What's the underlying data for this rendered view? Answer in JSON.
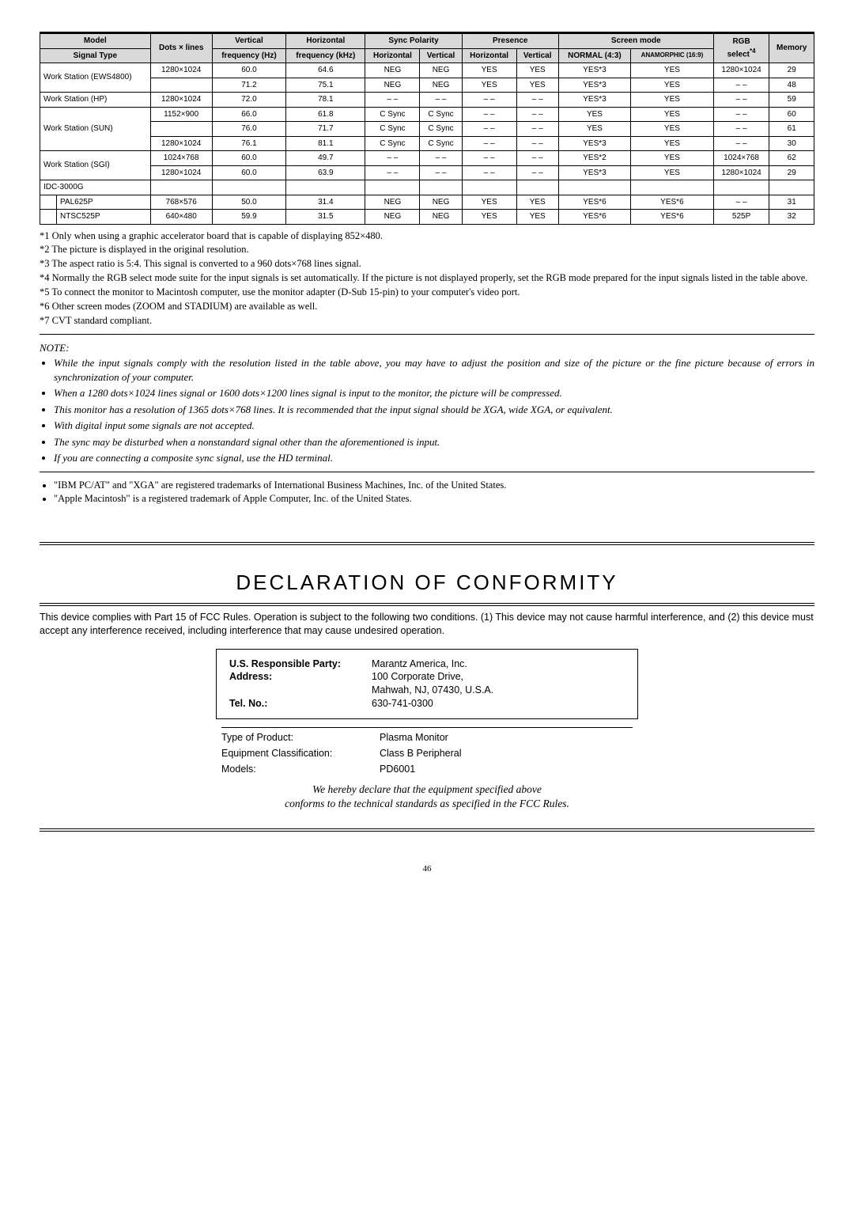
{
  "table": {
    "headers": {
      "model": "Model",
      "signal_type": "Signal Type",
      "dots_lines": "Dots × lines",
      "vert_freq": "Vertical",
      "vert_freq_unit": "frequency (Hz)",
      "horz_freq": "Horizontal",
      "horz_freq_unit": "frequency (kHz)",
      "sync_pol": "Sync Polarity",
      "presence": "Presence",
      "horizontal": "Horizontal",
      "vertical": "Vertical",
      "screen_mode": "Screen mode",
      "normal": "NORMAL (4:3)",
      "anam": "ANAMORPHIC (16:9)",
      "rgb_select": "RGB select*4",
      "memory": "Memory"
    },
    "groups": [
      {
        "model": "Work Station (EWS4800)",
        "rows": [
          {
            "dl": "1280×1024",
            "vf": "60.0",
            "hf": "64.6",
            "sh": "NEG",
            "sv": "NEG",
            "ph": "YES",
            "pv": "YES",
            "nm": "YES*3",
            "an": "YES",
            "rgb": "1280×1024",
            "mem": "29"
          },
          {
            "dl": "",
            "vf": "71.2",
            "hf": "75.1",
            "sh": "NEG",
            "sv": "NEG",
            "ph": "YES",
            "pv": "YES",
            "nm": "YES*3",
            "an": "YES",
            "rgb": "– –",
            "mem": "48"
          }
        ]
      },
      {
        "model": "Work Station (HP)",
        "rows": [
          {
            "dl": "1280×1024",
            "vf": "72.0",
            "hf": "78.1",
            "sh": "– –",
            "sv": "– –",
            "ph": "– –",
            "pv": "– –",
            "nm": "YES*3",
            "an": "YES",
            "rgb": "– –",
            "mem": "59"
          }
        ]
      },
      {
        "model": "Work Station (SUN)",
        "rows": [
          {
            "dl": "1152×900",
            "vf": "66.0",
            "hf": "61.8",
            "sh": "C Sync",
            "sv": "C Sync",
            "ph": "– –",
            "pv": "– –",
            "nm": "YES",
            "an": "YES",
            "rgb": "– –",
            "mem": "60"
          },
          {
            "dl": "",
            "vf": "76.0",
            "hf": "71.7",
            "sh": "C Sync",
            "sv": "C Sync",
            "ph": "– –",
            "pv": "– –",
            "nm": "YES",
            "an": "YES",
            "rgb": "– –",
            "mem": "61"
          },
          {
            "dl": "1280×1024",
            "vf": "76.1",
            "hf": "81.1",
            "sh": "C Sync",
            "sv": "C Sync",
            "ph": "– –",
            "pv": "– –",
            "nm": "YES*3",
            "an": "YES",
            "rgb": "– –",
            "mem": "30"
          }
        ]
      },
      {
        "model": "Work Station (SGI)",
        "rows": [
          {
            "dl": "1024×768",
            "vf": "60.0",
            "hf": "49.7",
            "sh": "– –",
            "sv": "– –",
            "ph": "– –",
            "pv": "– –",
            "nm": "YES*2",
            "an": "YES",
            "rgb": "1024×768",
            "mem": "62"
          },
          {
            "dl": "1280×1024",
            "vf": "60.0",
            "hf": "63.9",
            "sh": "– –",
            "sv": "– –",
            "ph": "– –",
            "pv": "– –",
            "nm": "YES*3",
            "an": "YES",
            "rgb": "1280×1024",
            "mem": "29"
          }
        ]
      },
      {
        "model": "IDC-3000G",
        "header_only": true,
        "rows": [
          {
            "sig": "PAL625P",
            "dl": "768×576",
            "vf": "50.0",
            "hf": "31.4",
            "sh": "NEG",
            "sv": "NEG",
            "ph": "YES",
            "pv": "YES",
            "nm": "YES*6",
            "an": "YES*6",
            "rgb": "– –",
            "mem": "31"
          },
          {
            "sig": "NTSC525P",
            "dl": "640×480",
            "vf": "59.9",
            "hf": "31.5",
            "sh": "NEG",
            "sv": "NEG",
            "ph": "YES",
            "pv": "YES",
            "nm": "YES*6",
            "an": "YES*6",
            "rgb": "525P",
            "mem": "32"
          }
        ]
      }
    ]
  },
  "footnotes": [
    "*1  Only when using a graphic accelerator board that is capable of displaying 852×480.",
    "*2  The picture is displayed in the original resolution.",
    "*3  The aspect ratio is 5:4. This signal is converted to a 960 dots×768 lines signal.",
    "*4  Normally the RGB select mode suite for the input signals is set automatically. If the picture is not displayed properly, set the RGB mode prepared for the input signals listed in the table above.",
    "*5  To connect the monitor to Macintosh computer, use the monitor adapter (D-Sub 15-pin) to your computer's video port.",
    "*6  Other screen modes (ZOOM and STADIUM) are available as well.",
    "*7  CVT standard compliant."
  ],
  "note_head": "NOTE:",
  "notes": [
    "While the input signals comply with the resolution listed in the table above, you may have to adjust the position and size of the picture or the fine picture because of errors in synchronization of your computer.",
    "When a 1280 dots×1024 lines signal or 1600 dots×1200 lines signal is input to the monitor, the picture will be compressed.",
    "This monitor has a resolution of 1365 dots×768 lines. It is recommended that the input signal should be XGA, wide XGA, or equivalent.",
    "With digital input some signals are not accepted.",
    "The sync may be disturbed when a nonstandard signal other than the aforementioned is input.",
    "If you are connecting a composite sync signal, use the HD terminal."
  ],
  "trademarks": [
    "\"IBM PC/AT\" and \"XGA\" are registered trademarks of International Business Machines, Inc. of the United States.",
    "\"Apple Macintosh\" is a registered trademark of Apple Computer, Inc. of the United States."
  ],
  "doc_title": "DECLARATION OF CONFORMITY",
  "doc_intro": "This device complies with Part 15 of FCC Rules. Operation is subject to the following two conditions. (1) This device may not cause harmful interference, and (2) this device must accept any interference received, including interference that may cause undesired operation.",
  "party": {
    "responsible_lbl": "U.S. Responsible Party:",
    "responsible": "Marantz America, Inc.",
    "address_lbl": "Address:",
    "address1": "100 Corporate Drive,",
    "address2": "Mahwah, NJ, 07430, U.S.A.",
    "tel_lbl": "Tel. No.:",
    "tel": "630-741-0300"
  },
  "info": {
    "type_lbl": "Type of Product:",
    "type": "Plasma Monitor",
    "class_lbl": "Equipment Classification:",
    "class": "Class B Peripheral",
    "models_lbl": "Models:",
    "models": "PD6001"
  },
  "declare1": "We hereby declare that the equipment specified above",
  "declare2": "conforms to the technical standards as specified in the FCC Rules.",
  "page_no": "46"
}
